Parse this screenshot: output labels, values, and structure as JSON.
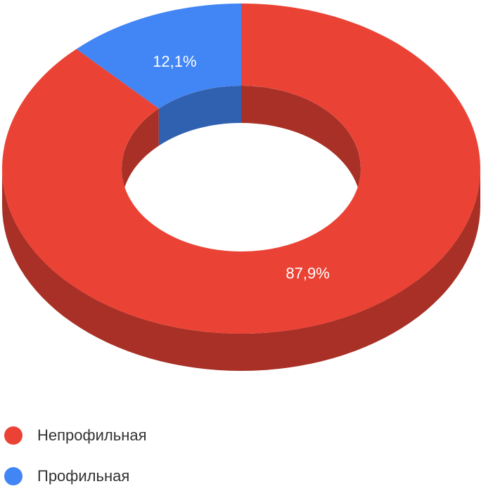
{
  "chart_data": {
    "type": "donut",
    "categories": [
      "Непрофильная",
      "Профильная"
    ],
    "values": [
      87.9,
      12.1
    ],
    "value_labels": [
      "87,9%",
      "12,1%"
    ],
    "colors": [
      "#ea4335",
      "#4285f4"
    ],
    "legend": "bottom-left"
  }
}
